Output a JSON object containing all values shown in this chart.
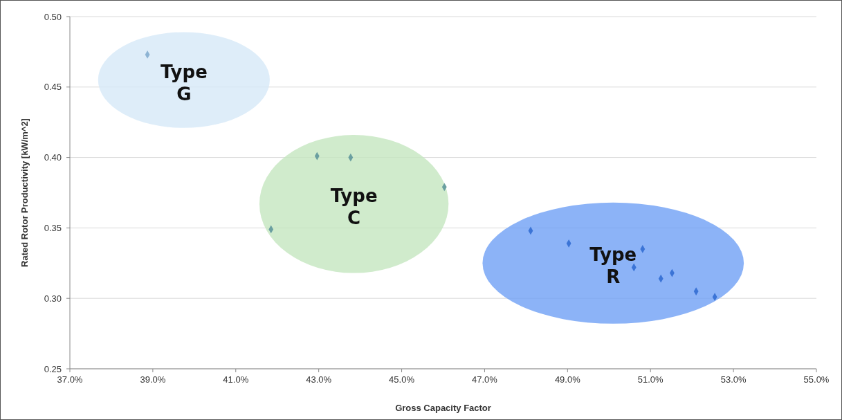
{
  "chart_data": {
    "type": "scatter",
    "xlabel": "Gross Capacity Factor",
    "ylabel": "Rated Rotor Productivity [kW/m^2]",
    "xlim": [
      37,
      55
    ],
    "ylim": [
      0.25,
      0.5
    ],
    "xticks": [
      {
        "value": 37,
        "label": "37.0%"
      },
      {
        "value": 39,
        "label": "39.0%"
      },
      {
        "value": 41,
        "label": "41.0%"
      },
      {
        "value": 43,
        "label": "43.0%"
      },
      {
        "value": 45,
        "label": "45.0%"
      },
      {
        "value": 47,
        "label": "47.0%"
      },
      {
        "value": 49,
        "label": "49.0%"
      },
      {
        "value": 51,
        "label": "51.0%"
      },
      {
        "value": 53,
        "label": "53.0%"
      },
      {
        "value": 55,
        "label": "55.0%"
      }
    ],
    "yticks": [
      {
        "value": 0.25,
        "label": "0.25"
      },
      {
        "value": 0.3,
        "label": "0.30"
      },
      {
        "value": 0.35,
        "label": "0.35"
      },
      {
        "value": 0.4,
        "label": "0.40"
      },
      {
        "value": 0.45,
        "label": "0.45"
      },
      {
        "value": 0.5,
        "label": "0.50"
      }
    ],
    "grid": "y",
    "marker": "diamond",
    "series": [
      {
        "name": "Type G",
        "color": "#8db4d4",
        "x": [
          38.87
        ],
        "values": [
          0.473
        ]
      },
      {
        "name": "Type C",
        "color": "#6a9fa0",
        "x": [
          41.85,
          42.96,
          43.77,
          46.03
        ],
        "values": [
          0.349,
          0.401,
          0.4,
          0.379
        ]
      },
      {
        "name": "Type R",
        "color": "#3b74d6",
        "x": [
          48.11,
          49.03,
          50.81,
          50.6,
          51.25,
          51.52,
          52.1,
          52.55
        ],
        "values": [
          0.348,
          0.339,
          0.335,
          0.322,
          0.314,
          0.318,
          0.305,
          0.301
        ]
      }
    ]
  }
}
